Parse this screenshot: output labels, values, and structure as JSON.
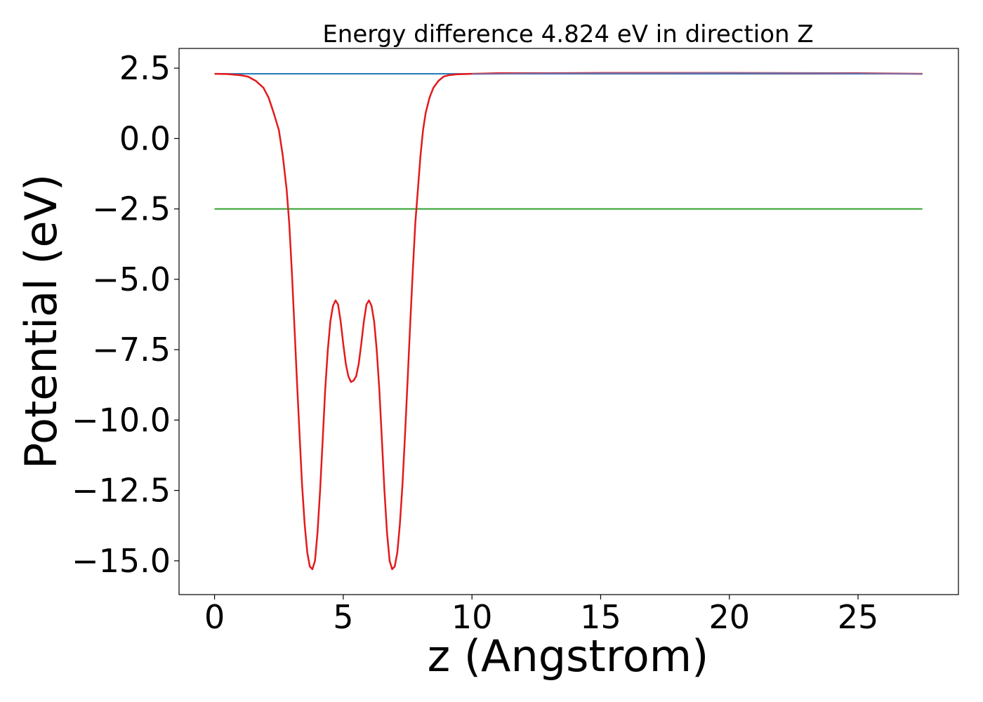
{
  "chart_data": {
    "type": "line",
    "title": "Energy difference 4.824 eV in direction Z",
    "xlabel": "z (Angstrom)",
    "ylabel": "Potential (eV)",
    "xlim": [
      -1.38,
      28.9
    ],
    "ylim": [
      -16.2,
      3.2
    ],
    "x_ticks": [
      0,
      5,
      10,
      15,
      20,
      25
    ],
    "x_tick_labels": [
      "0",
      "5",
      "10",
      "15",
      "20",
      "25"
    ],
    "y_ticks": [
      2.5,
      0.0,
      -2.5,
      -5.0,
      -7.5,
      -10.0,
      -12.5,
      -15.0
    ],
    "y_tick_labels": [
      "2.5",
      "0.0",
      "−2.5",
      "−5.0",
      "−7.5",
      "−10.0",
      "−12.5",
      "−15.0"
    ],
    "grid": false,
    "legend": "none",
    "series": [
      {
        "color": "#1f77b4",
        "x": [
          0,
          27.5
        ],
        "y": [
          2.3,
          2.3
        ]
      },
      {
        "color": "#2ca02c",
        "x": [
          0,
          27.5
        ],
        "y": [
          -2.5,
          -2.5
        ]
      },
      {
        "color": "#e31a1c",
        "x": [
          0.0,
          0.5,
          1.0,
          1.3,
          1.6,
          1.9,
          2.1,
          2.3,
          2.5,
          2.65,
          2.8,
          2.9,
          3.0,
          3.1,
          3.2,
          3.3,
          3.4,
          3.5,
          3.6,
          3.7,
          3.8,
          3.9,
          4.0,
          4.1,
          4.2,
          4.3,
          4.4,
          4.5,
          4.6,
          4.7,
          4.8,
          4.9,
          5.0,
          5.1,
          5.2,
          5.3,
          5.4,
          5.5,
          5.6,
          5.7,
          5.8,
          5.9,
          6.0,
          6.1,
          6.2,
          6.3,
          6.4,
          6.5,
          6.6,
          6.7,
          6.8,
          6.9,
          7.0,
          7.1,
          7.2,
          7.3,
          7.4,
          7.5,
          7.6,
          7.7,
          7.8,
          7.9,
          8.0,
          8.1,
          8.2,
          8.35,
          8.5,
          8.7,
          8.9,
          9.1,
          9.4,
          9.7,
          10.0,
          10.5,
          11.0,
          13.0,
          15.0,
          20.0,
          25.0,
          27.5
        ],
        "y": [
          2.3,
          2.29,
          2.25,
          2.2,
          2.05,
          1.8,
          1.45,
          0.9,
          0.3,
          -0.6,
          -1.8,
          -3.0,
          -4.7,
          -6.6,
          -8.6,
          -10.5,
          -12.3,
          -13.7,
          -14.7,
          -15.2,
          -15.3,
          -15.0,
          -14.0,
          -12.5,
          -10.7,
          -8.9,
          -7.5,
          -6.5,
          -5.95,
          -5.75,
          -5.9,
          -6.5,
          -7.3,
          -8.0,
          -8.45,
          -8.65,
          -8.6,
          -8.45,
          -8.0,
          -7.3,
          -6.5,
          -5.9,
          -5.75,
          -5.95,
          -6.5,
          -7.5,
          -8.9,
          -10.7,
          -12.5,
          -14.0,
          -15.0,
          -15.3,
          -15.2,
          -14.7,
          -13.7,
          -12.3,
          -10.5,
          -8.6,
          -6.6,
          -4.7,
          -3.0,
          -1.8,
          -0.6,
          0.3,
          0.9,
          1.45,
          1.8,
          2.05,
          2.2,
          2.25,
          2.28,
          2.29,
          2.3,
          2.31,
          2.32,
          2.32,
          2.33,
          2.33,
          2.32,
          2.3
        ]
      },
      {
        "color": "#7b6fa8",
        "x": [
          10.0,
          12.0,
          15.0,
          20.0,
          24.0,
          27.5
        ],
        "y": [
          2.29,
          2.31,
          2.32,
          2.33,
          2.32,
          2.3
        ]
      }
    ]
  }
}
